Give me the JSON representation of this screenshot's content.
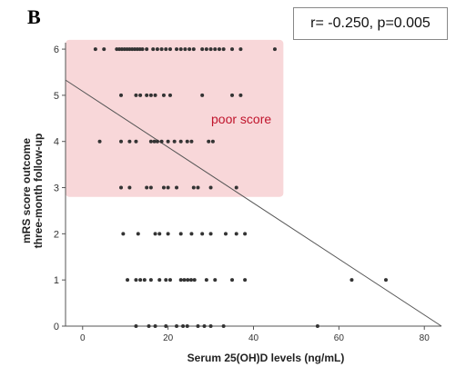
{
  "panel_letter": "B",
  "stats_text": "r= -0.250, p=0.005",
  "chart_data": {
    "type": "scatter",
    "xlabel": "Serum 25(OH)D levels (ng/mL)",
    "ylabel_lines": [
      "mRS score outcome",
      "three-month follow-up"
    ],
    "xlim": [
      -4,
      84
    ],
    "ylim": [
      0,
      6.1
    ],
    "xticks": [
      0,
      20,
      40,
      60,
      80
    ],
    "yticks": [
      0,
      1,
      2,
      3,
      4,
      5,
      6
    ],
    "highlight": {
      "label": "poor score",
      "x_range": [
        -4,
        47
      ],
      "y_range": [
        2.8,
        6.2
      ],
      "color": "#f8d7d9",
      "label_color": "#c0142c"
    },
    "regression_line": {
      "x": [
        -4,
        84
      ],
      "y": [
        5.33,
        0
      ]
    },
    "point_color": "#333333",
    "points": [
      {
        "x": 3,
        "y": 6
      },
      {
        "x": 5,
        "y": 6
      },
      {
        "x": 8,
        "y": 6
      },
      {
        "x": 8.6,
        "y": 6
      },
      {
        "x": 9.2,
        "y": 6
      },
      {
        "x": 9.8,
        "y": 6
      },
      {
        "x": 10.4,
        "y": 6
      },
      {
        "x": 11,
        "y": 6
      },
      {
        "x": 11.6,
        "y": 6
      },
      {
        "x": 12.2,
        "y": 6
      },
      {
        "x": 12.8,
        "y": 6
      },
      {
        "x": 13.4,
        "y": 6
      },
      {
        "x": 14,
        "y": 6
      },
      {
        "x": 15,
        "y": 6
      },
      {
        "x": 16.5,
        "y": 6
      },
      {
        "x": 17.5,
        "y": 6
      },
      {
        "x": 18.5,
        "y": 6
      },
      {
        "x": 19.5,
        "y": 6
      },
      {
        "x": 20.5,
        "y": 6
      },
      {
        "x": 22,
        "y": 6
      },
      {
        "x": 23,
        "y": 6
      },
      {
        "x": 24,
        "y": 6
      },
      {
        "x": 25,
        "y": 6
      },
      {
        "x": 26,
        "y": 6
      },
      {
        "x": 28,
        "y": 6
      },
      {
        "x": 29,
        "y": 6
      },
      {
        "x": 30,
        "y": 6
      },
      {
        "x": 31,
        "y": 6
      },
      {
        "x": 32,
        "y": 6
      },
      {
        "x": 33,
        "y": 6
      },
      {
        "x": 35,
        "y": 6
      },
      {
        "x": 37,
        "y": 6
      },
      {
        "x": 45,
        "y": 6
      },
      {
        "x": 9,
        "y": 5
      },
      {
        "x": 12.5,
        "y": 5
      },
      {
        "x": 13.5,
        "y": 5
      },
      {
        "x": 15,
        "y": 5
      },
      {
        "x": 16,
        "y": 5
      },
      {
        "x": 17,
        "y": 5
      },
      {
        "x": 19,
        "y": 5
      },
      {
        "x": 20.5,
        "y": 5
      },
      {
        "x": 28,
        "y": 5
      },
      {
        "x": 35,
        "y": 5
      },
      {
        "x": 37,
        "y": 5
      },
      {
        "x": 4,
        "y": 4
      },
      {
        "x": 9,
        "y": 4
      },
      {
        "x": 11,
        "y": 4
      },
      {
        "x": 12.5,
        "y": 4
      },
      {
        "x": 16,
        "y": 4
      },
      {
        "x": 16.8,
        "y": 4
      },
      {
        "x": 17.5,
        "y": 4
      },
      {
        "x": 18.5,
        "y": 4
      },
      {
        "x": 20,
        "y": 4
      },
      {
        "x": 21.5,
        "y": 4
      },
      {
        "x": 23,
        "y": 4
      },
      {
        "x": 24.5,
        "y": 4
      },
      {
        "x": 25.5,
        "y": 4
      },
      {
        "x": 29.5,
        "y": 4
      },
      {
        "x": 30.5,
        "y": 4
      },
      {
        "x": 9,
        "y": 3
      },
      {
        "x": 11,
        "y": 3
      },
      {
        "x": 15,
        "y": 3
      },
      {
        "x": 16,
        "y": 3
      },
      {
        "x": 19,
        "y": 3
      },
      {
        "x": 20,
        "y": 3
      },
      {
        "x": 22,
        "y": 3
      },
      {
        "x": 26,
        "y": 3
      },
      {
        "x": 27,
        "y": 3
      },
      {
        "x": 30,
        "y": 3
      },
      {
        "x": 36,
        "y": 3
      },
      {
        "x": 9.5,
        "y": 2
      },
      {
        "x": 13,
        "y": 2
      },
      {
        "x": 17,
        "y": 2
      },
      {
        "x": 18,
        "y": 2
      },
      {
        "x": 20,
        "y": 2
      },
      {
        "x": 23,
        "y": 2
      },
      {
        "x": 25.5,
        "y": 2
      },
      {
        "x": 28,
        "y": 2
      },
      {
        "x": 30,
        "y": 2
      },
      {
        "x": 33.5,
        "y": 2
      },
      {
        "x": 36,
        "y": 2
      },
      {
        "x": 38,
        "y": 2
      },
      {
        "x": 10.5,
        "y": 1
      },
      {
        "x": 12.5,
        "y": 1
      },
      {
        "x": 13.5,
        "y": 1
      },
      {
        "x": 14.5,
        "y": 1
      },
      {
        "x": 16,
        "y": 1
      },
      {
        "x": 18,
        "y": 1
      },
      {
        "x": 19.5,
        "y": 1
      },
      {
        "x": 20.5,
        "y": 1
      },
      {
        "x": 23,
        "y": 1
      },
      {
        "x": 23.8,
        "y": 1
      },
      {
        "x": 24.6,
        "y": 1
      },
      {
        "x": 25.4,
        "y": 1
      },
      {
        "x": 26.2,
        "y": 1
      },
      {
        "x": 29,
        "y": 1
      },
      {
        "x": 31,
        "y": 1
      },
      {
        "x": 35,
        "y": 1
      },
      {
        "x": 38,
        "y": 1
      },
      {
        "x": 63,
        "y": 1
      },
      {
        "x": 71,
        "y": 1
      },
      {
        "x": 12.5,
        "y": 0
      },
      {
        "x": 15.5,
        "y": 0
      },
      {
        "x": 17,
        "y": 0
      },
      {
        "x": 19.5,
        "y": 0
      },
      {
        "x": 22,
        "y": 0
      },
      {
        "x": 23.5,
        "y": 0
      },
      {
        "x": 24.5,
        "y": 0
      },
      {
        "x": 27,
        "y": 0
      },
      {
        "x": 28.5,
        "y": 0
      },
      {
        "x": 30,
        "y": 0
      },
      {
        "x": 33,
        "y": 0
      },
      {
        "x": 55,
        "y": 0
      }
    ]
  }
}
